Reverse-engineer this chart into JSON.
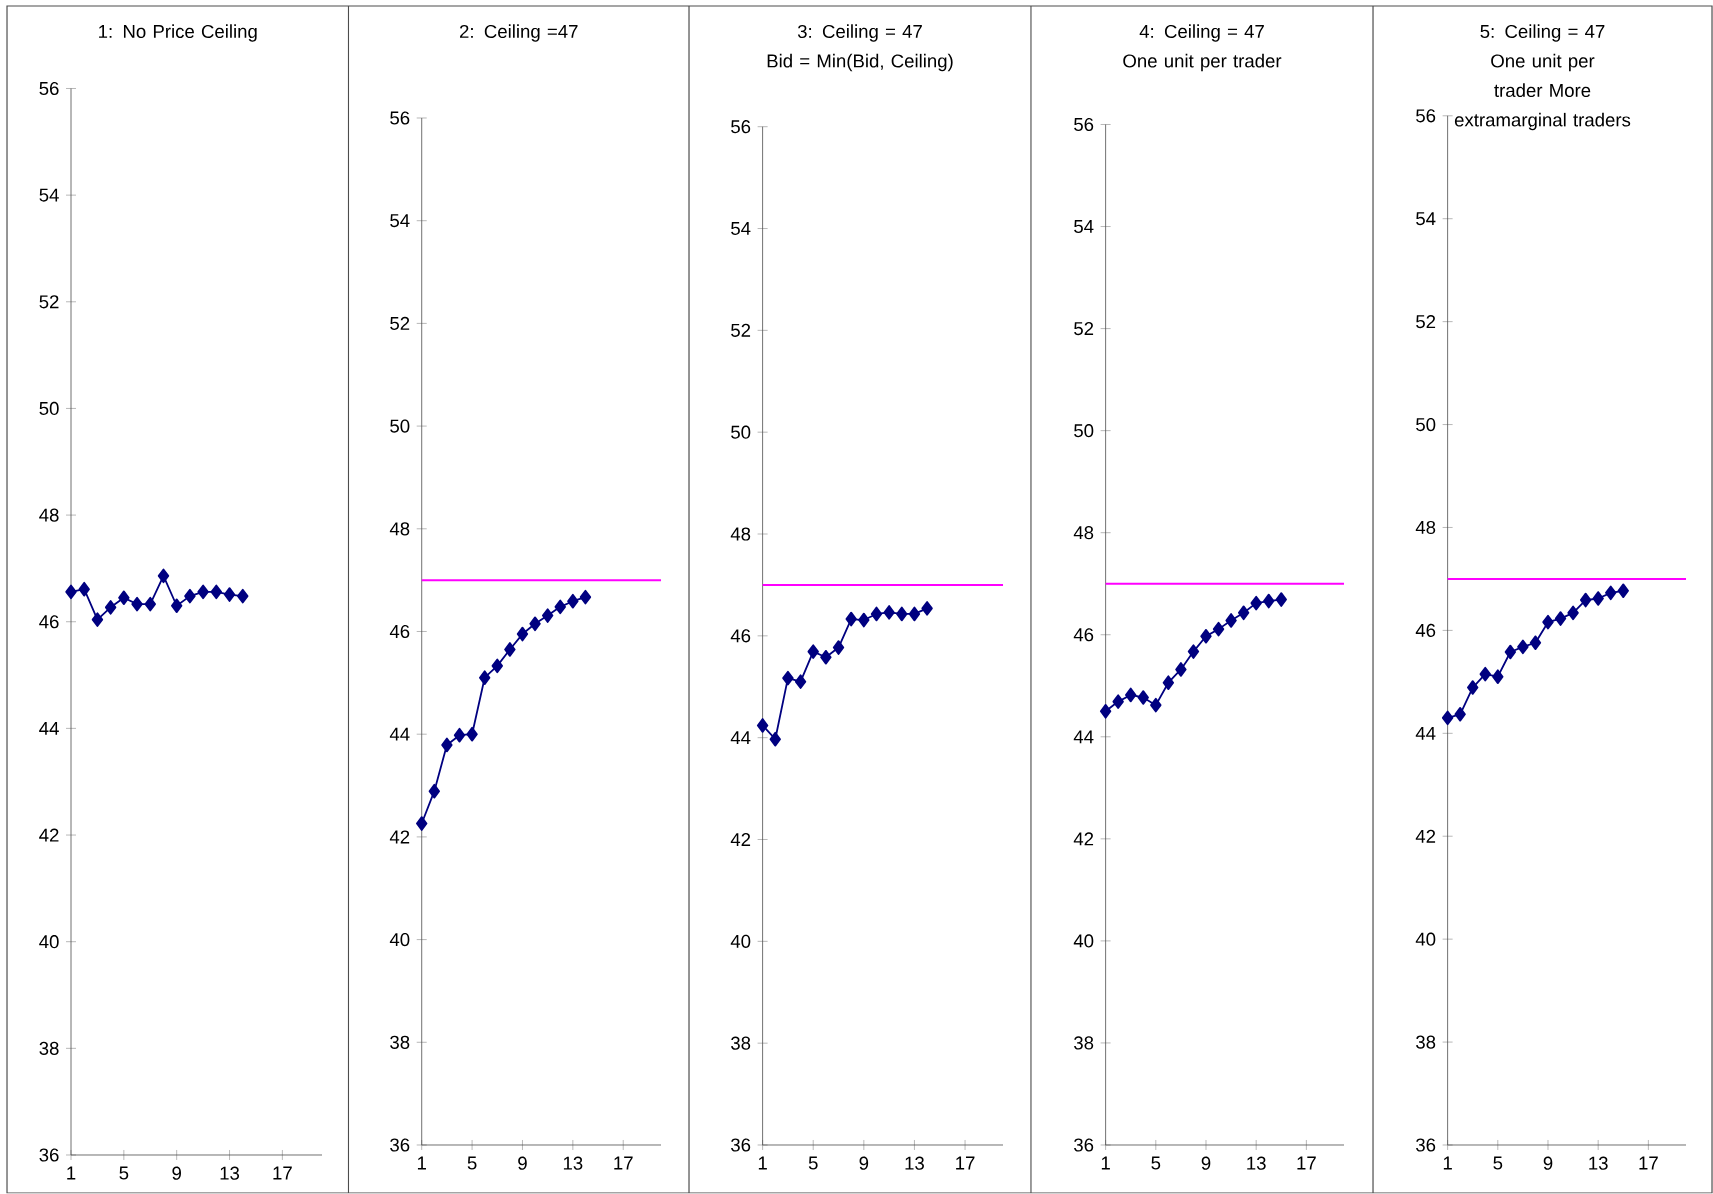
{
  "chart_data": [
    {
      "type": "line",
      "title": "1: No Price Ceiling",
      "x": [
        1,
        2,
        3,
        4,
        5,
        6,
        7,
        8,
        9,
        10,
        11,
        12,
        13,
        14
      ],
      "values": [
        46.56,
        46.61,
        46.04,
        46.27,
        46.45,
        46.33,
        46.33,
        46.86,
        46.3,
        46.48,
        46.56,
        46.56,
        46.51,
        46.48
      ],
      "color": "#000080",
      "marker": "diamond",
      "xlim": [
        1,
        20
      ],
      "xticks": [
        1,
        5,
        9,
        13,
        17
      ],
      "ylim": [
        36,
        56
      ],
      "yticks": [
        36,
        38,
        40,
        42,
        44,
        46,
        48,
        50,
        52,
        54,
        56
      ]
    },
    {
      "type": "line",
      "title": "2: Ceiling =47",
      "x": [
        1,
        2,
        3,
        4,
        5,
        6,
        7,
        8,
        9,
        10,
        11,
        12,
        13,
        14
      ],
      "values": [
        42.26,
        42.89,
        43.79,
        43.98,
        44.0,
        45.1,
        45.33,
        45.65,
        45.95,
        46.15,
        46.31,
        46.48,
        46.59,
        46.67
      ],
      "color": "#000080",
      "marker": "diamond",
      "xlim": [
        1,
        20
      ],
      "xticks": [
        1,
        5,
        9,
        13,
        17
      ],
      "ylim": [
        36,
        56
      ],
      "yticks": [
        36,
        38,
        40,
        42,
        44,
        46,
        48,
        50,
        52,
        54,
        56
      ],
      "ref_lines": [
        {
          "axis": "y",
          "value": 47,
          "color": "#ff00ff"
        }
      ]
    },
    {
      "type": "line",
      "title": "3: Ceiling = 47",
      "subtitle": "Bid = Min(Bid, Ceiling)",
      "x": [
        1,
        2,
        3,
        4,
        5,
        6,
        7,
        8,
        9,
        10,
        11,
        12,
        13,
        14
      ],
      "values": [
        44.24,
        43.97,
        45.17,
        45.1,
        45.69,
        45.58,
        45.77,
        46.33,
        46.31,
        46.43,
        46.46,
        46.43,
        46.43,
        46.54
      ],
      "color": "#000080",
      "marker": "diamond",
      "xlim": [
        1,
        20
      ],
      "xticks": [
        1,
        5,
        9,
        13,
        17
      ],
      "ylim": [
        36,
        56
      ],
      "yticks": [
        36,
        38,
        40,
        42,
        44,
        46,
        48,
        50,
        52,
        54,
        56
      ],
      "ref_lines": [
        {
          "axis": "y",
          "value": 47,
          "color": "#ff00ff"
        }
      ]
    },
    {
      "type": "line",
      "title": "4: Ceiling = 47",
      "subtitle": "One unit per trader",
      "x": [
        1,
        2,
        3,
        4,
        5,
        6,
        7,
        8,
        9,
        10,
        11,
        12,
        13,
        14,
        15
      ],
      "values": [
        44.5,
        44.69,
        44.82,
        44.77,
        44.62,
        45.06,
        45.32,
        45.67,
        45.97,
        46.11,
        46.28,
        46.43,
        46.62,
        46.66,
        46.69
      ],
      "color": "#000080",
      "marker": "diamond",
      "xlim": [
        1,
        20
      ],
      "xticks": [
        1,
        5,
        9,
        13,
        17
      ],
      "ylim": [
        36,
        56
      ],
      "yticks": [
        36,
        38,
        40,
        42,
        44,
        46,
        48,
        50,
        52,
        54,
        56
      ],
      "ref_lines": [
        {
          "axis": "y",
          "value": 47,
          "color": "#ff00ff"
        }
      ]
    },
    {
      "type": "line",
      "title": "5: Ceiling = 47",
      "subtitle": "One unit per trader More extramarginal traders",
      "x": [
        1,
        2,
        3,
        4,
        5,
        6,
        7,
        8,
        9,
        10,
        11,
        12,
        13,
        14,
        15
      ],
      "values": [
        44.3,
        44.37,
        44.89,
        45.15,
        45.1,
        45.58,
        45.68,
        45.76,
        46.16,
        46.23,
        46.34,
        46.59,
        46.62,
        46.73,
        46.77
      ],
      "color": "#000080",
      "marker": "diamond",
      "xlim": [
        1,
        20
      ],
      "xticks": [
        1,
        5,
        9,
        13,
        17
      ],
      "ylim": [
        36,
        56
      ],
      "yticks": [
        36,
        38,
        40,
        42,
        44,
        46,
        48,
        50,
        52,
        54,
        56
      ],
      "ref_lines": [
        {
          "axis": "y",
          "value": 47,
          "color": "#ff00ff"
        }
      ]
    }
  ]
}
